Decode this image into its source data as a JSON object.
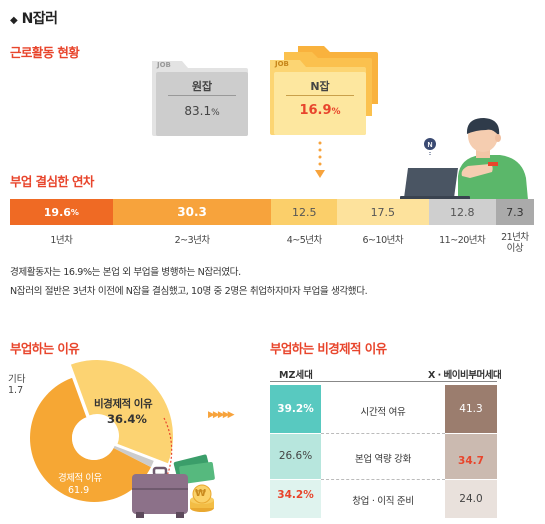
{
  "title": "N잡러",
  "work_status": {
    "heading": "근로활동 현황",
    "main_job": {
      "tag": "JOB",
      "label": "원잡",
      "value": "83.1",
      "unit": "%"
    },
    "n_job": {
      "tag": "JOB",
      "label": "N잡",
      "value": "16.9",
      "unit": "%"
    }
  },
  "years": {
    "heading": "부업 결심한 연차",
    "segments": [
      {
        "value": "19.6",
        "unit": "%",
        "label": "1년차",
        "fraction": 0.196,
        "color": "#ef6a24"
      },
      {
        "value": "30.3",
        "unit": "",
        "label": "2~3년차",
        "fraction": 0.303,
        "color": "#f7a33c"
      },
      {
        "value": "12.5",
        "unit": "",
        "label": "4~5년차",
        "fraction": 0.125,
        "color": "#fbcf6a"
      },
      {
        "value": "17.5",
        "unit": "",
        "label": "6~10년차",
        "fraction": 0.175,
        "color": "#fde29c"
      },
      {
        "value": "12.8",
        "unit": "",
        "label": "11~20년차",
        "fraction": 0.128,
        "color": "#cfcfcf"
      },
      {
        "value": "7.3",
        "unit": "",
        "label": "21년차 이상",
        "fraction": 0.073,
        "color": "#aaaaaa"
      }
    ]
  },
  "paragraph": {
    "line1": "경제활동자는 16.9%는 본업 외 부업을 병행하는 N잡러였다.",
    "line2": "N잡러의 절반은 3년차 이전에 N잡을 결심했고, 10명 중 2명은 취업하자마자 부업을 생각했다."
  },
  "reasons": {
    "heading": "부업하는 이유",
    "slices": [
      {
        "label": "경제적 이유",
        "value": "61.9",
        "fraction": 0.619,
        "color": "#f6a734"
      },
      {
        "label": "비경제적 이유",
        "value": "36.4%",
        "fraction": 0.364,
        "color": "#fcd372"
      },
      {
        "label": "기타",
        "value": "1.7",
        "fraction": 0.017,
        "color": "#cccccc"
      }
    ],
    "coin_symbol": "₩"
  },
  "non_economic": {
    "heading": "부업하는 비경제적 이유",
    "left_header": "MZ세대",
    "right_header": "X · 베이비부머세대",
    "rows": [
      {
        "label": "시간적 여유",
        "left": "39.2%",
        "right": "41.3"
      },
      {
        "label": "본업 역량 강화",
        "left": "26.6%",
        "right": "34.7"
      },
      {
        "label": "창업 · 이직 준비",
        "left": "34.2%",
        "right": "24.0"
      }
    ]
  },
  "colors": {
    "accent": "#e8452c",
    "orange": "#f7a33c",
    "mint": "#58c9c0",
    "brown": "#9b7d6e"
  }
}
